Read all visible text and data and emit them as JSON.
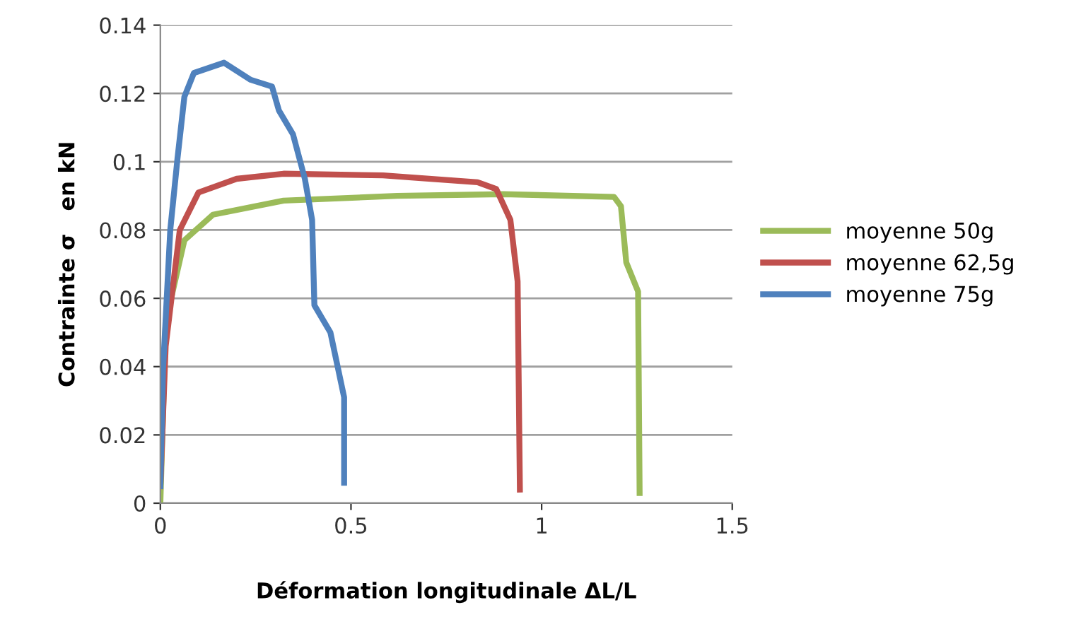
{
  "chart_data": {
    "type": "line",
    "xlabel": "Déformation longitudinale ΔL/L",
    "ylabel": "Contrainte σ   en kN",
    "xlim": [
      0,
      1.5
    ],
    "ylim": [
      0,
      0.14
    ],
    "xticks": [
      0,
      0.5,
      1,
      1.5
    ],
    "yticks": [
      0,
      0.02,
      0.04,
      0.06,
      0.08,
      0.1,
      0.12,
      0.14
    ],
    "grid": "y",
    "legend": "right",
    "marker": "none",
    "line_style": "solid",
    "series": [
      {
        "name": "moyenne 50g",
        "color": "#9bbb59",
        "x": [
          0,
          0.014,
          0.063,
          0.138,
          0.323,
          0.621,
          0.9,
          1.19,
          1.208,
          1.222,
          1.253,
          1.257
        ],
        "values": [
          0,
          0.053,
          0.077,
          0.0845,
          0.0886,
          0.09,
          0.0905,
          0.0897,
          0.087,
          0.0705,
          0.062,
          0.003
        ]
      },
      {
        "name": "moyenne 62,5g",
        "color": "#c0504d",
        "x": [
          0,
          0.014,
          0.051,
          0.1,
          0.2,
          0.323,
          0.584,
          0.832,
          0.881,
          0.918,
          0.937,
          0.943
        ],
        "values": [
          0.005,
          0.046,
          0.08,
          0.091,
          0.095,
          0.0965,
          0.096,
          0.094,
          0.092,
          0.083,
          0.065,
          0.004
        ]
      },
      {
        "name": "moyenne 75g",
        "color": "#4f81bd",
        "x": [
          0,
          0.007,
          0.026,
          0.045,
          0.063,
          0.088,
          0.167,
          0.237,
          0.293,
          0.311,
          0.348,
          0.379,
          0.398,
          0.404,
          0.446,
          0.465,
          0.482,
          0.482
        ],
        "values": [
          0.005,
          0.039,
          0.08,
          0.101,
          0.119,
          0.126,
          0.129,
          0.124,
          0.122,
          0.115,
          0.108,
          0.095,
          0.083,
          0.058,
          0.05,
          0.04,
          0.031,
          0.006
        ]
      }
    ]
  }
}
